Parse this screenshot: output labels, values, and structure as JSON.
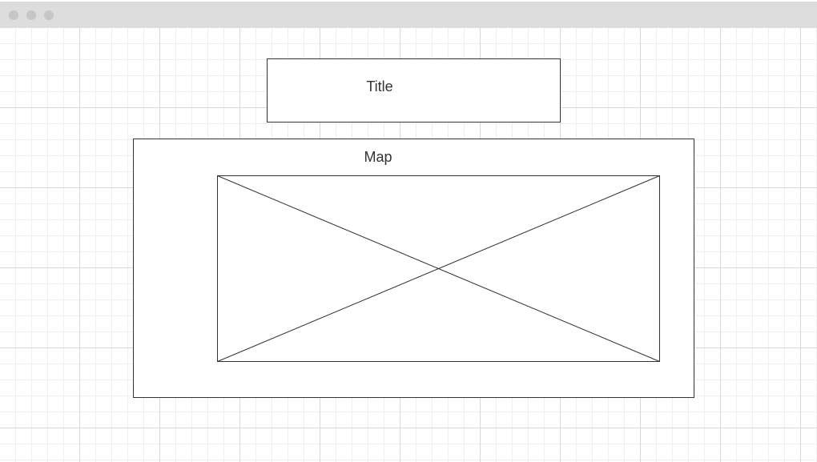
{
  "title_box": {
    "label": "Title"
  },
  "map_box": {
    "label": "Map"
  },
  "image_placeholder": {
    "icon": "image-placeholder-icon"
  }
}
